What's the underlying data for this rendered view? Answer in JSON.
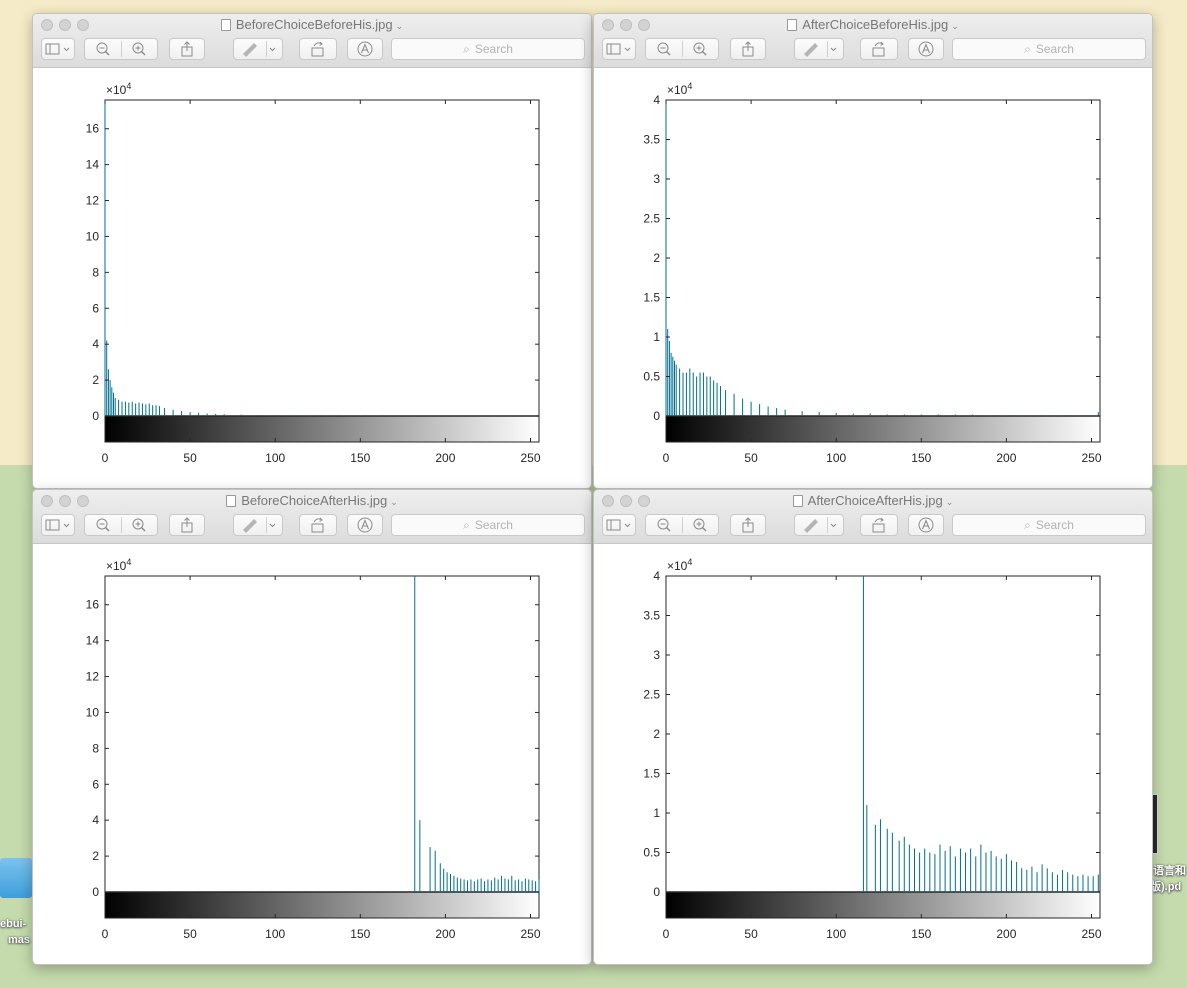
{
  "desktop": {
    "left_label_line1": "ebui-",
    "left_label_line2": "mas",
    "right_label_line1": "语言和",
    "right_label_line2": "版).pd"
  },
  "toolbar": {
    "sidebar_icon": "sidebar-icon",
    "zoom_out_icon": "zoom-out-icon",
    "zoom_in_icon": "zoom-in-icon",
    "share_icon": "share-icon",
    "markup_icon": "markup-pen-icon",
    "rotate_icon": "rotate-icon",
    "annotate_icon": "annotate-icon",
    "search_placeholder": "Search"
  },
  "accent_color": "#006f8f",
  "windows": [
    {
      "title": "BeforeChoiceBeforeHis.jpg"
    },
    {
      "title": "AfterChoiceBeforeHis.jpg"
    },
    {
      "title": "BeforeChoiceAfterHis.jpg"
    },
    {
      "title": "AfterChoiceAfterHis.jpg"
    }
  ],
  "chart_data": [
    {
      "type": "bar",
      "title": "",
      "xlabel": "",
      "ylabel": "",
      "exponent": "4",
      "xlim": [
        0,
        255
      ],
      "ylim": [
        0,
        17.6
      ],
      "yticks": [
        0,
        2,
        4,
        6,
        8,
        10,
        12,
        14,
        16
      ],
      "ytick_labels": [
        "0",
        "2",
        "4",
        "6",
        "8",
        "10",
        "12",
        "14",
        "16"
      ],
      "xticks": [
        0,
        50,
        100,
        150,
        200,
        250
      ],
      "xtick_labels": [
        "0",
        "50",
        "100",
        "150",
        "200",
        "250"
      ],
      "x": [
        0,
        1,
        2,
        3,
        4,
        5,
        6,
        8,
        10,
        12,
        14,
        16,
        18,
        20,
        22,
        24,
        26,
        28,
        30,
        32,
        35,
        40,
        45,
        50,
        55,
        60,
        65,
        70,
        80,
        90,
        100,
        110,
        120,
        130,
        140,
        150,
        160,
        170,
        180,
        190,
        200,
        210,
        220,
        230,
        240,
        250,
        255
      ],
      "values": [
        17.6,
        4.2,
        2.6,
        2.0,
        1.6,
        1.3,
        1.0,
        0.9,
        0.8,
        0.8,
        0.75,
        0.8,
        0.7,
        0.75,
        0.7,
        0.65,
        0.7,
        0.6,
        0.6,
        0.55,
        0.45,
        0.35,
        0.28,
        0.22,
        0.18,
        0.14,
        0.12,
        0.1,
        0.08,
        0.06,
        0.05,
        0.04,
        0.03,
        0.03,
        0.02,
        0.02,
        0.02,
        0.01,
        0.01,
        0.01,
        0.01,
        0.01,
        0.01,
        0.01,
        0.01,
        0.01,
        0.01
      ]
    },
    {
      "type": "bar",
      "title": "",
      "xlabel": "",
      "ylabel": "",
      "exponent": "4",
      "xlim": [
        0,
        255
      ],
      "ylim": [
        0,
        4
      ],
      "yticks": [
        0,
        0.5,
        1,
        1.5,
        2,
        2.5,
        3,
        3.5,
        4
      ],
      "ytick_labels": [
        "0",
        "0.5",
        "1",
        "1.5",
        "2",
        "2.5",
        "3",
        "3.5",
        "4"
      ],
      "xticks": [
        0,
        50,
        100,
        150,
        200,
        250
      ],
      "xtick_labels": [
        "0",
        "50",
        "100",
        "150",
        "200",
        "250"
      ],
      "x": [
        0,
        1,
        2,
        3,
        4,
        5,
        6,
        8,
        10,
        12,
        14,
        16,
        18,
        20,
        22,
        24,
        26,
        28,
        30,
        32,
        35,
        40,
        45,
        50,
        55,
        60,
        65,
        70,
        80,
        90,
        100,
        110,
        120,
        130,
        140,
        150,
        160,
        170,
        180,
        190,
        200,
        210,
        220,
        230,
        240,
        250,
        254
      ],
      "values": [
        4.0,
        1.1,
        0.95,
        0.8,
        0.75,
        0.7,
        0.65,
        0.6,
        0.55,
        0.55,
        0.6,
        0.55,
        0.5,
        0.55,
        0.55,
        0.5,
        0.5,
        0.45,
        0.42,
        0.38,
        0.33,
        0.28,
        0.22,
        0.18,
        0.15,
        0.12,
        0.1,
        0.08,
        0.06,
        0.05,
        0.04,
        0.03,
        0.03,
        0.02,
        0.02,
        0.02,
        0.02,
        0.02,
        0.02,
        0.01,
        0.01,
        0.01,
        0.01,
        0.01,
        0.01,
        0.01,
        0.05
      ]
    },
    {
      "type": "bar",
      "title": "",
      "xlabel": "",
      "ylabel": "",
      "exponent": "4",
      "xlim": [
        0,
        255
      ],
      "ylim": [
        0,
        17.6
      ],
      "yticks": [
        0,
        2,
        4,
        6,
        8,
        10,
        12,
        14,
        16
      ],
      "ytick_labels": [
        "0",
        "2",
        "4",
        "6",
        "8",
        "10",
        "12",
        "14",
        "16"
      ],
      "xticks": [
        0,
        50,
        100,
        150,
        200,
        250
      ],
      "xtick_labels": [
        "0",
        "50",
        "100",
        "150",
        "200",
        "250"
      ],
      "x": [
        182,
        185,
        191,
        194,
        197,
        199,
        201,
        203,
        205,
        207,
        209,
        211,
        213,
        215,
        217,
        219,
        221,
        223,
        225,
        227,
        229,
        231,
        233,
        235,
        237,
        239,
        241,
        243,
        245,
        247,
        249,
        251,
        253,
        255
      ],
      "values": [
        17.6,
        4.0,
        2.5,
        2.3,
        1.6,
        1.3,
        1.1,
        1.0,
        0.9,
        0.8,
        0.75,
        0.7,
        0.65,
        0.7,
        0.6,
        0.7,
        0.75,
        0.6,
        0.7,
        0.65,
        0.8,
        0.7,
        0.9,
        0.75,
        0.7,
        0.9,
        0.65,
        0.7,
        0.6,
        0.75,
        0.7,
        0.65,
        0.6,
        0.7
      ]
    },
    {
      "type": "bar",
      "title": "",
      "xlabel": "",
      "ylabel": "",
      "exponent": "4",
      "xlim": [
        0,
        255
      ],
      "ylim": [
        0,
        4
      ],
      "yticks": [
        0,
        0.5,
        1,
        1.5,
        2,
        2.5,
        3,
        3.5,
        4
      ],
      "ytick_labels": [
        "0",
        "0.5",
        "1",
        "1.5",
        "2",
        "2.5",
        "3",
        "3.5",
        "4"
      ],
      "xticks": [
        0,
        50,
        100,
        150,
        200,
        250
      ],
      "xtick_labels": [
        "0",
        "50",
        "100",
        "150",
        "200",
        "250"
      ],
      "x": [
        116,
        118,
        123,
        126,
        130,
        133,
        137,
        140,
        143,
        146,
        149,
        152,
        155,
        158,
        161,
        164,
        167,
        170,
        173,
        176,
        179,
        182,
        185,
        188,
        191,
        194,
        197,
        200,
        203,
        206,
        209,
        212,
        215,
        218,
        221,
        224,
        227,
        230,
        233,
        236,
        239,
        242,
        245,
        248,
        251,
        254
      ],
      "values": [
        4.0,
        1.1,
        0.85,
        0.92,
        0.8,
        0.75,
        0.65,
        0.7,
        0.6,
        0.55,
        0.5,
        0.55,
        0.5,
        0.48,
        0.6,
        0.52,
        0.58,
        0.45,
        0.55,
        0.5,
        0.55,
        0.45,
        0.6,
        0.5,
        0.52,
        0.45,
        0.42,
        0.48,
        0.4,
        0.38,
        0.3,
        0.28,
        0.32,
        0.25,
        0.35,
        0.3,
        0.25,
        0.22,
        0.28,
        0.25,
        0.22,
        0.2,
        0.22,
        0.2,
        0.2,
        0.22
      ]
    }
  ]
}
